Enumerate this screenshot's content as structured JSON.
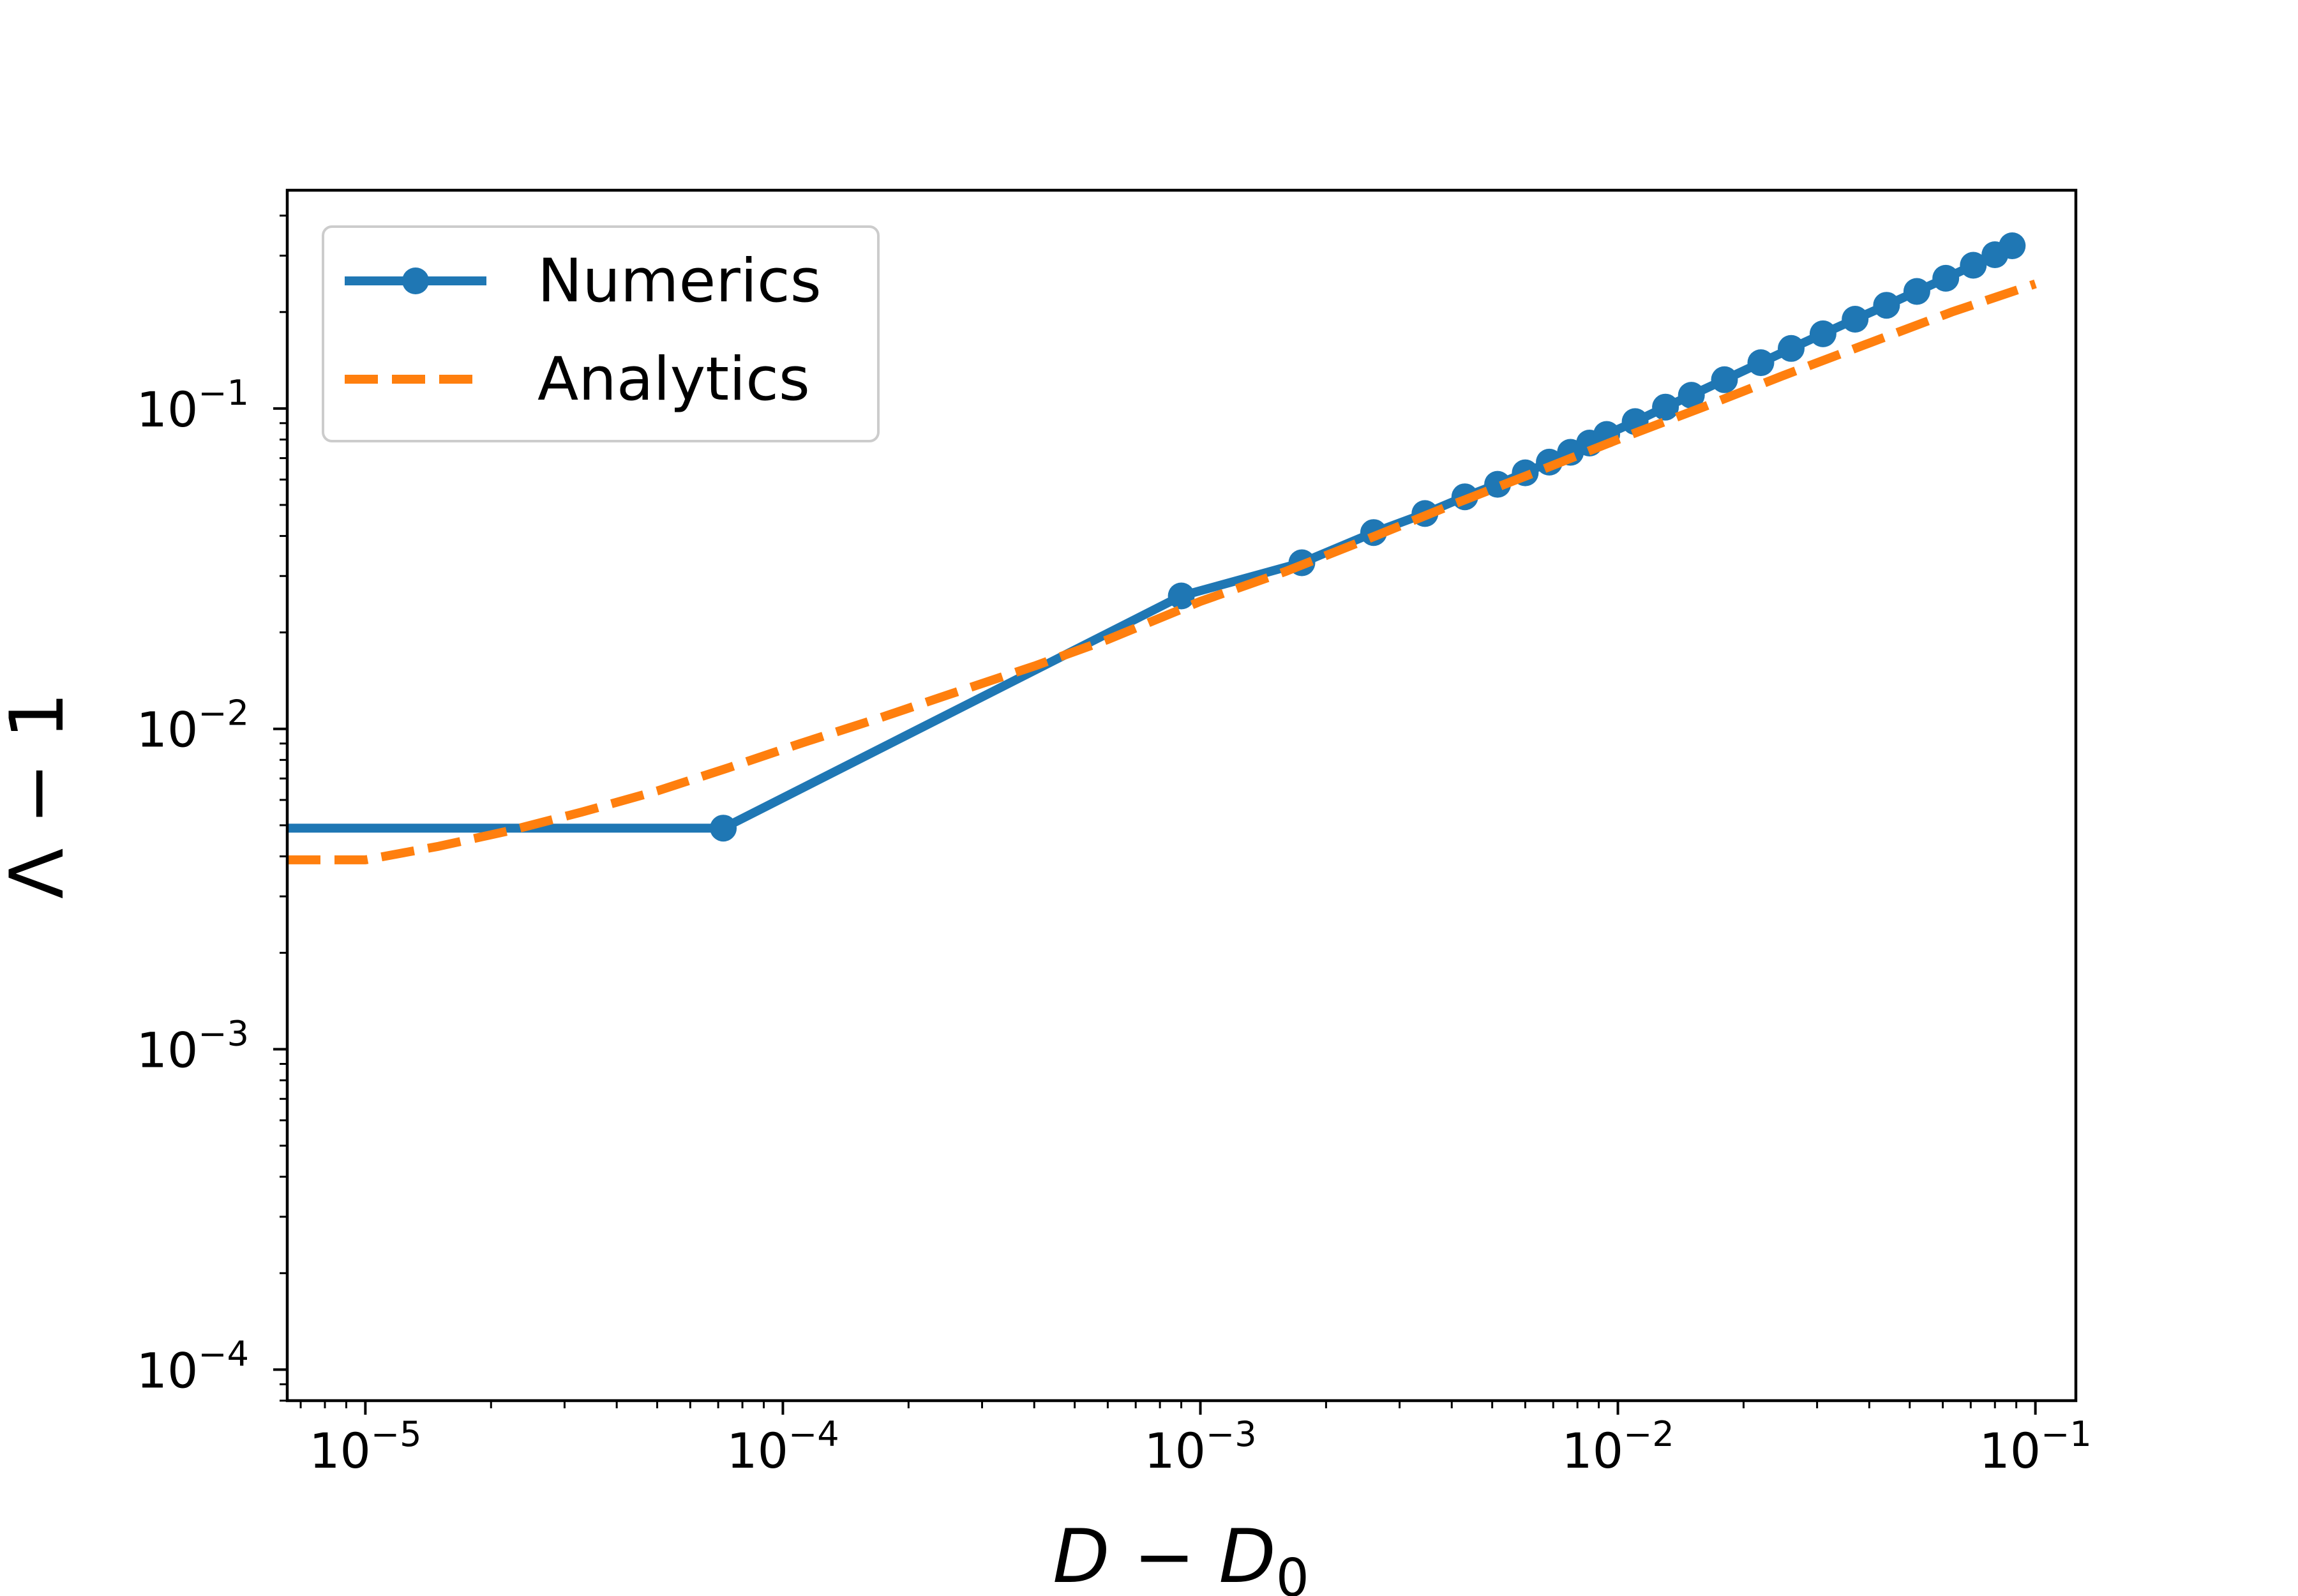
{
  "chart_data": {
    "type": "line",
    "xscale": "log",
    "yscale": "log",
    "xlim": [
      6.5e-06,
      0.125
    ],
    "ylim": [
      8e-05,
      0.48
    ],
    "xlabel": {
      "main": "D − D",
      "sub": "0"
    },
    "ylabel": "Λ − 1",
    "xticks": [
      {
        "value": 1e-05,
        "base": "10",
        "exp": "−5"
      },
      {
        "value": 0.0001,
        "base": "10",
        "exp": "−4"
      },
      {
        "value": 0.001,
        "base": "10",
        "exp": "−3"
      },
      {
        "value": 0.01,
        "base": "10",
        "exp": "−2"
      },
      {
        "value": 0.1,
        "base": "10",
        "exp": "−1"
      }
    ],
    "yticks": [
      {
        "value": 0.0001,
        "base": "10",
        "exp": "−4"
      },
      {
        "value": 0.001,
        "base": "10",
        "exp": "−3"
      },
      {
        "value": 0.01,
        "base": "10",
        "exp": "−2"
      },
      {
        "value": 0.1,
        "base": "10",
        "exp": "−1"
      }
    ],
    "grid": false,
    "legend": {
      "position": "top-left"
    },
    "series": [
      {
        "name": "Numerics",
        "color": "#1f77b4",
        "style": "solid",
        "markers": true,
        "points": [
          [
            6.5e-06,
            0.0049
          ],
          [
            7.2e-05,
            0.0049
          ],
          [
            0.0009,
            0.026
          ],
          [
            0.00175,
            0.033
          ],
          [
            0.0026,
            0.041
          ],
          [
            0.00345,
            0.047
          ],
          [
            0.0043,
            0.053
          ],
          [
            0.00515,
            0.058
          ],
          [
            0.006,
            0.063
          ],
          [
            0.00685,
            0.068
          ],
          [
            0.0077,
            0.073
          ],
          [
            0.00855,
            0.078
          ],
          [
            0.0094,
            0.083
          ],
          [
            0.011,
            0.091
          ],
          [
            0.013,
            0.101
          ],
          [
            0.015,
            0.11
          ],
          [
            0.018,
            0.123
          ],
          [
            0.022,
            0.139
          ],
          [
            0.026,
            0.154
          ],
          [
            0.031,
            0.171
          ],
          [
            0.037,
            0.19
          ],
          [
            0.044,
            0.21
          ],
          [
            0.052,
            0.232
          ],
          [
            0.061,
            0.255
          ],
          [
            0.071,
            0.28
          ],
          [
            0.08,
            0.302
          ],
          [
            0.088,
            0.322
          ]
        ]
      },
      {
        "name": "Analytics",
        "color": "#ff7f0e",
        "style": "dashed",
        "markers": false,
        "points": [
          [
            6.5e-06,
            0.0039
          ],
          [
            1e-05,
            0.0039
          ],
          [
            1.5e-05,
            0.0043
          ],
          [
            2.2e-05,
            0.0048
          ],
          [
            3.3e-05,
            0.0055
          ],
          [
            5e-05,
            0.0064
          ],
          [
            7.5e-05,
            0.0076
          ],
          [
            0.00011,
            0.009
          ],
          [
            0.00017,
            0.0108
          ],
          [
            0.00025,
            0.0128
          ],
          [
            0.0004,
            0.0157
          ],
          [
            0.0006,
            0.019
          ],
          [
            0.001,
            0.025
          ],
          [
            0.0016,
            0.031
          ],
          [
            0.0025,
            0.039
          ],
          [
            0.004,
            0.05
          ],
          [
            0.0063,
            0.063
          ],
          [
            0.01,
            0.08
          ],
          [
            0.016,
            0.101
          ],
          [
            0.025,
            0.127
          ],
          [
            0.04,
            0.16
          ],
          [
            0.063,
            0.2
          ],
          [
            0.1,
            0.245
          ]
        ]
      }
    ]
  }
}
